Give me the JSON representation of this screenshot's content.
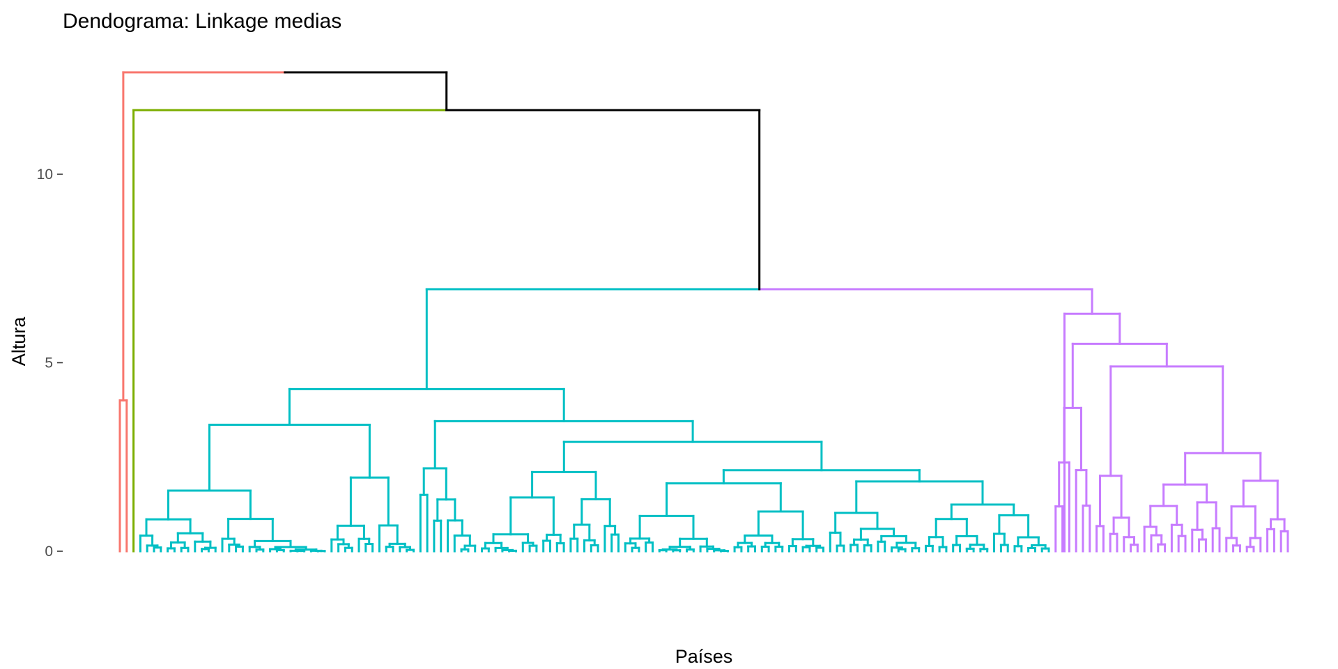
{
  "chart_data": {
    "type": "dendrogram",
    "title": "Dendograma: Linkage medias",
    "xlabel": "Países",
    "ylabel": "Altura",
    "ylim": [
      0,
      12.6
    ],
    "yticks": [
      {
        "value": 0,
        "label": "0"
      },
      {
        "value": 5,
        "label": "5"
      },
      {
        "value": 10,
        "label": "10"
      }
    ],
    "grid": false,
    "legend": "none",
    "n_leaves": 172,
    "root_height": 12.7,
    "clusters": [
      {
        "id": 1,
        "color": "#F8766D",
        "leaf_range": [
          0,
          1
        ],
        "merge_height": 4.0
      },
      {
        "id": 2,
        "color": "#7CAE00",
        "leaf_range": [
          2,
          2
        ],
        "merge_height": 0
      },
      {
        "id": 3,
        "color": "#00BFC4",
        "leaf_range": [
          3,
          136
        ],
        "merge_height": 6.95
      },
      {
        "id": 4,
        "color": "#C77CFF",
        "leaf_range": [
          137,
          171
        ],
        "merge_height": 6.3
      }
    ],
    "upper_merges": [
      {
        "height": 6.95,
        "joins": [
          "cluster 3",
          "cluster 4"
        ]
      },
      {
        "height": 11.7,
        "joins": [
          "cluster 2",
          "cluster 3 + 4"
        ]
      },
      {
        "height": 12.7,
        "joins": [
          "cluster 1",
          "cluster 2 + 3 + 4"
        ]
      }
    ],
    "connector_color": "#000000"
  }
}
